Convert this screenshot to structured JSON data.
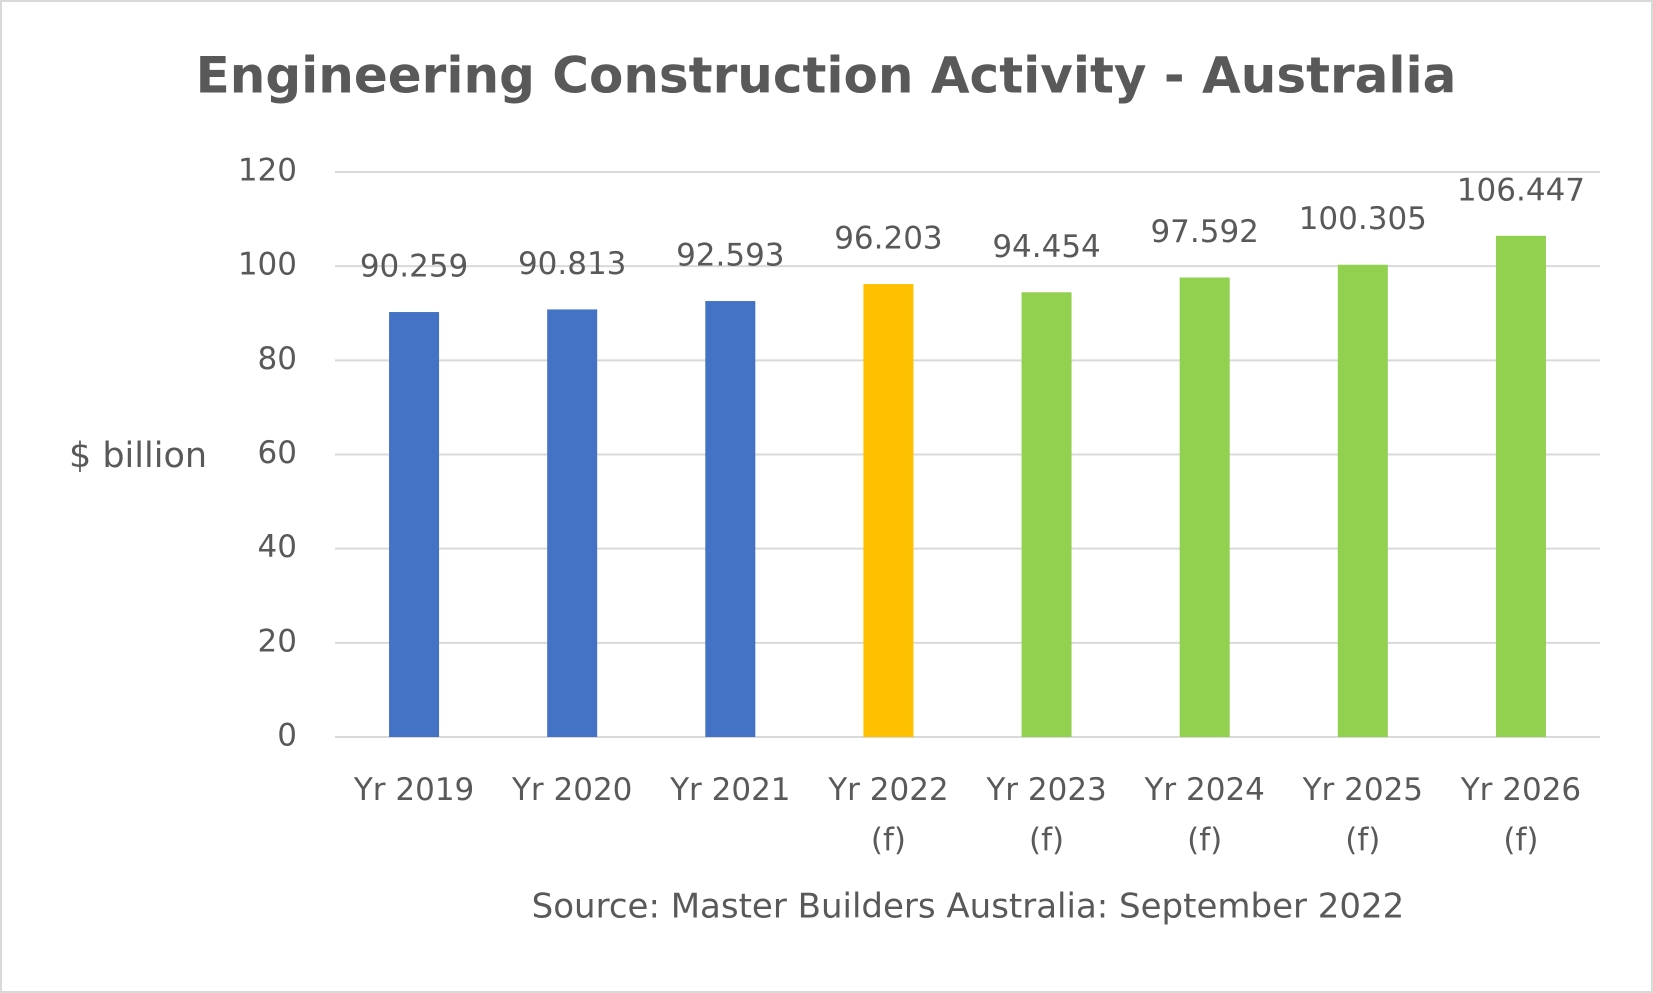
{
  "chart_data": {
    "type": "bar",
    "title": "Engineering Construction Activity - Australia",
    "y_label": "$ billion",
    "source": "Source: Master Builders Australia: September 2022",
    "categories": [
      "Yr 2019",
      "Yr 2020",
      "Yr 2021",
      "Yr 2022 (f)",
      "Yr 2023 (f)",
      "Yr 2024 (f)",
      "Yr 2025 (f)",
      "Yr 2026 (f)"
    ],
    "values": [
      90.259,
      90.813,
      92.593,
      96.203,
      94.454,
      97.592,
      100.305,
      106.447
    ],
    "colors": [
      "#4472c4",
      "#4472c4",
      "#4472c4",
      "#ffc000",
      "#92d050",
      "#92d050",
      "#92d050",
      "#92d050"
    ],
    "ylim": [
      0,
      120
    ],
    "yticks": [
      0,
      20,
      40,
      60,
      80,
      100,
      120
    ],
    "grid": true
  }
}
